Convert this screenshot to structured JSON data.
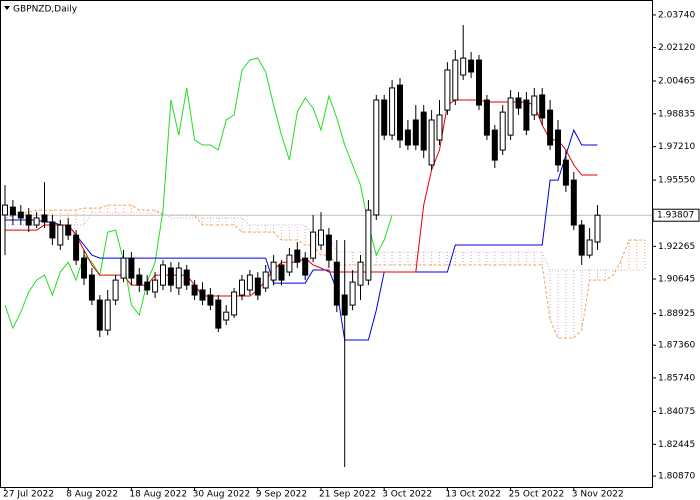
{
  "chart_data": {
    "type": "candlestick",
    "title": "GBPNZD,Daily",
    "categories": [
      "27 Jul 2022",
      null,
      null,
      null,
      null,
      null,
      null,
      null,
      "8 Aug 2022",
      null,
      null,
      null,
      null,
      null,
      null,
      null,
      "18 Aug 2022",
      null,
      null,
      null,
      null,
      null,
      null,
      null,
      "30 Aug 2022",
      null,
      null,
      null,
      null,
      null,
      null,
      null,
      "9 Sep 2022",
      null,
      null,
      null,
      null,
      null,
      null,
      null,
      "21 Sep 2022",
      null,
      null,
      null,
      null,
      null,
      null,
      null,
      "3 Oct 2022",
      null,
      null,
      null,
      null,
      null,
      null,
      null,
      "13 Oct 2022",
      null,
      null,
      null,
      null,
      null,
      null,
      null,
      "25 Oct 2022",
      null,
      null,
      null,
      null,
      null,
      null,
      null,
      "3 Nov 2022",
      null,
      null,
      null
    ],
    "open": [
      1.9382,
      1.9421,
      1.9396,
      1.9382,
      1.9332,
      1.9382,
      1.9347,
      1.9233,
      1.9332,
      1.9282,
      1.9168,
      1.9084,
      1.896,
      1.8811,
      1.896,
      1.9069,
      1.9168,
      1.9084,
      1.9049,
      1.9,
      1.9034,
      1.9119,
      1.902,
      1.9109,
      1.9034,
      1.901,
      1.8985,
      1.896,
      1.8861,
      1.8886,
      1.8985,
      1.901,
      1.9069,
      1.902,
      1.9059,
      1.9134,
      1.9099,
      1.9208,
      1.9168,
      1.9168,
      1.9233,
      1.9282,
      1.9148,
      1.8985,
      1.8935,
      1.9034,
      1.9059,
      1.9382,
      1.9952,
      1.9778,
      2.0026,
      1.9803,
      1.9853,
      1.9892,
      1.963,
      1.9754,
      1.9902,
      1.9952,
      2.0076,
      2.015,
      2.015,
      1.9952,
      1.9803,
      1.9704,
      1.9778,
      1.9962,
      1.9952,
      1.9878,
      1.9977,
      1.9902,
      1.9803,
      1.9654,
      1.9555,
      1.9332,
      1.9183,
      1.9248
    ],
    "high": [
      1.953,
      1.9456,
      1.9431,
      1.9416,
      1.9396,
      1.9545,
      1.9382,
      1.9357,
      1.9367,
      1.9307,
      1.9208,
      1.9119,
      1.8985,
      1.901,
      1.9084,
      1.9208,
      1.9198,
      1.9119,
      1.9084,
      1.9099,
      1.9158,
      1.9148,
      1.9148,
      1.9134,
      1.9059,
      1.9049,
      1.902,
      1.8985,
      1.8935,
      1.902,
      1.9084,
      1.9109,
      1.9099,
      1.9134,
      1.9183,
      1.9158,
      1.9218,
      1.9248,
      1.9198,
      1.9382,
      1.9396,
      1.9317,
      1.9258,
      1.9258,
      1.9109,
      1.9183,
      1.9456,
      1.9977,
      1.9977,
      2.0051,
      2.0061,
      1.9853,
      1.9927,
      1.9927,
      1.9902,
      1.9952,
      2.014,
      2.02,
      2.0324,
      2.019,
      2.0175,
      1.9977,
      1.9828,
      1.9927,
      2.0002,
      1.9992,
      1.9992,
      2.0012,
      2.0012,
      1.9952,
      1.9853,
      1.9704,
      1.9595,
      1.9357,
      1.9317,
      1.9431
    ],
    "low": [
      1.9183,
      1.9332,
      1.9332,
      1.9297,
      1.9317,
      1.9317,
      1.9233,
      1.9208,
      1.9258,
      1.9134,
      1.9034,
      1.8935,
      1.8776,
      1.8786,
      1.8935,
      1.9049,
      1.9034,
      1.9,
      1.8985,
      1.897,
      1.901,
      1.9,
      1.8985,
      1.901,
      1.896,
      1.8935,
      1.891,
      1.8801,
      1.8836,
      1.8871,
      1.896,
      1.8985,
      1.896,
      1.9,
      1.9034,
      1.9034,
      1.9079,
      1.9119,
      1.9059,
      1.9148,
      1.9208,
      1.9119,
      1.89,
      1.8132,
      1.891,
      1.896,
      1.9034,
      1.9357,
      1.9754,
      1.9754,
      1.9714,
      1.9704,
      1.9704,
      1.9664,
      1.9605,
      1.9729,
      1.9878,
      1.9927,
      2.0051,
      2.0061,
      1.9902,
      1.9754,
      1.9615,
      1.9679,
      1.9754,
      1.9878,
      1.9778,
      1.9853,
      1.9828,
      1.9704,
      1.9595,
      1.9496,
      1.9307,
      1.9134,
      1.9168,
      1.9208
    ],
    "close": [
      1.9431,
      1.9382,
      1.9367,
      1.9332,
      1.9367,
      1.9347,
      1.9268,
      1.9332,
      1.9282,
      1.9158,
      1.9069,
      1.896,
      1.8811,
      1.896,
      1.9059,
      1.9168,
      1.9069,
      1.9034,
      1.901,
      1.9059,
      1.9134,
      1.9034,
      1.9119,
      1.9034,
      1.8985,
      1.896,
      1.8935,
      1.8821,
      1.89,
      1.9,
      1.9059,
      1.9084,
      1.8985,
      1.9099,
      1.9148,
      1.9059,
      1.9183,
      1.9148,
      1.9084,
      1.9297,
      1.9307,
      1.9158,
      1.8935,
      1.8886,
      1.9049,
      1.9148,
      1.9406,
      1.9952,
      1.9778,
      2.0012,
      1.9754,
      1.9729,
      1.9729,
      1.9704,
      1.9853,
      1.9878,
      2.0101,
      2.015,
      2.016,
      2.0091,
      1.9927,
      1.9778,
      1.9654,
      1.9892,
      1.9962,
      1.9912,
      1.9803,
      1.9972,
      1.9863,
      1.9729,
      1.963,
      1.953,
      1.9332,
      1.9183,
      1.9258,
      1.93807
    ],
    "bull_color": "#ffffff",
    "bear_color": "#000000",
    "tenkan": {
      "color": "#e00000",
      "values": [
        1.9307,
        1.9307,
        1.9307,
        1.9307,
        1.9307,
        1.9332,
        1.9332,
        1.9332,
        1.9332,
        1.9282,
        1.9208,
        1.9134,
        1.9084,
        1.9084,
        1.9084,
        1.9084,
        1.9034,
        1.9034,
        1.9034,
        1.9084,
        1.9084,
        1.9084,
        1.9084,
        1.9084,
        1.9034,
        1.898,
        1.898,
        1.898,
        1.898,
        1.898,
        1.898,
        1.898,
        1.901,
        1.9059,
        1.9109,
        1.9148,
        1.9148,
        1.9148,
        1.9168,
        1.9134,
        1.9119,
        1.9099,
        1.9099,
        1.9099,
        1.9099,
        1.9099,
        1.9099,
        1.9099,
        1.9099,
        1.9099,
        1.9099,
        1.9099,
        1.9099,
        1.9431,
        1.9605,
        1.9704,
        1.9927,
        1.9952,
        1.9952,
        1.9952,
        1.9952,
        1.9942,
        1.9942,
        1.9942,
        1.9942,
        1.9942,
        1.9942,
        1.9927,
        1.9828,
        1.9754,
        1.9754,
        1.9704,
        1.963,
        1.958,
        1.958,
        1.958
      ]
    },
    "kijun": {
      "color": "#0000e0",
      "values": [
        1.9357,
        1.9357,
        1.9357,
        1.9357,
        1.9357,
        1.9347,
        1.9347,
        1.9332,
        1.9332,
        1.9282,
        1.9233,
        1.9183,
        1.9168,
        1.9168,
        1.9168,
        1.9168,
        1.9168,
        1.9168,
        1.9168,
        1.9168,
        1.9168,
        1.9168,
        1.9168,
        1.9168,
        1.9168,
        1.9168,
        1.9168,
        1.9168,
        1.9168,
        1.9168,
        1.9168,
        1.9168,
        1.9168,
        1.9168,
        1.9044,
        1.9044,
        1.9044,
        1.9044,
        1.9044,
        1.9109,
        1.9109,
        1.9109,
        1.901,
        1.8762,
        1.8762,
        1.8762,
        1.8762,
        1.891,
        1.9099,
        1.9099,
        1.9099,
        1.9099,
        1.9099,
        1.9099,
        1.9099,
        1.9099,
        1.9099,
        1.9233,
        1.9233,
        1.9233,
        1.9233,
        1.9233,
        1.9233,
        1.9233,
        1.9233,
        1.9233,
        1.9233,
        1.9233,
        1.9233,
        1.9555,
        1.9555,
        1.9679,
        1.9803,
        1.9729,
        1.9729,
        1.9729
      ]
    },
    "chikou": {
      "color": "#22dd22",
      "values": [
        1.8935,
        1.8821,
        1.89,
        1.9,
        1.9059,
        1.9084,
        1.8985,
        1.9099,
        1.9148,
        1.9059,
        1.9183,
        1.9148,
        1.9084,
        1.9297,
        1.9307,
        1.9158,
        1.8935,
        1.8886,
        1.9049,
        1.9148,
        1.9406,
        1.9952,
        1.9778,
        2.0012,
        1.9754,
        1.9729,
        1.9729,
        1.9704,
        1.9853,
        1.9878,
        2.0101,
        2.015,
        2.016,
        2.0091,
        1.9927,
        1.9778,
        1.9654,
        1.9892,
        1.9962,
        1.9912,
        1.9803,
        1.9972,
        1.9863,
        1.9729,
        1.963,
        1.953,
        1.9332,
        1.9183,
        1.9258,
        1.93807
      ]
    },
    "span_a": {
      "color": "#f4a460",
      "values": [
        1.9367,
        1.9377,
        1.9387,
        1.9396,
        1.9406,
        1.9406,
        1.9406,
        1.9406,
        1.9406,
        1.9406,
        1.9416,
        1.9416,
        1.9416,
        1.9431,
        1.9431,
        1.9431,
        1.9431,
        1.9406,
        1.9406,
        1.9406,
        1.9382,
        1.9382,
        1.9382,
        1.9382,
        1.9382,
        1.9332,
        1.9332,
        1.9332,
        1.9332,
        1.9332,
        1.9297,
        1.9297,
        1.9297,
        1.9297,
        1.9297,
        1.9258,
        1.9258,
        1.9258,
        1.9233,
        1.9233,
        1.9183,
        1.9183,
        1.9134,
        1.9134,
        1.9134,
        1.9134,
        1.9134,
        1.9134,
        1.9134,
        1.9134,
        1.9134,
        1.9134,
        1.9134,
        1.9134,
        1.9134,
        1.9134,
        1.9134,
        1.9134,
        1.9134,
        1.9134,
        1.9134,
        1.9134,
        1.9134,
        1.9134,
        1.9134,
        1.9134,
        1.9134,
        1.9134,
        1.9134,
        1.8861,
        1.8772,
        1.8772,
        1.8772,
        1.8811,
        1.9059,
        1.9059,
        1.9059,
        1.9084,
        1.9158,
        1.9258,
        1.9258,
        1.9258
      ]
    },
    "span_b": {
      "color": "#c8a8c8",
      "values": [
        1.9332,
        1.9332,
        1.9332,
        1.9332,
        1.9332,
        1.9332,
        1.9332,
        1.9332,
        1.9332,
        1.9332,
        1.9332,
        1.9392,
        1.9392,
        1.9392,
        1.9392,
        1.9392,
        1.9392,
        1.9392,
        1.9392,
        1.9392,
        1.9392,
        1.9367,
        1.9367,
        1.9367,
        1.9367,
        1.9367,
        1.9367,
        1.9367,
        1.9367,
        1.9367,
        1.9367,
        1.9332,
        1.9332,
        1.9332,
        1.9332,
        1.9332,
        1.9332,
        1.9332,
        1.9332,
        1.9282,
        1.9282,
        1.9282,
        1.9198,
        1.9198,
        1.9198,
        1.9198,
        1.9198,
        1.9198,
        1.9198,
        1.9198,
        1.9198,
        1.9198,
        1.9198,
        1.9198,
        1.9198,
        1.9198,
        1.9198,
        1.9198,
        1.9198,
        1.9198,
        1.9198,
        1.9198,
        1.9198,
        1.9198,
        1.9198,
        1.9198,
        1.9198,
        1.9198,
        1.9198,
        1.9109,
        1.9109,
        1.9109,
        1.9109,
        1.9109,
        1.9109,
        1.9109,
        1.9109,
        1.9109,
        1.9109,
        1.9109,
        1.9109,
        1.9109
      ]
    },
    "last_price": 1.93807,
    "ylim": [
      1.8033,
      2.0448
    ],
    "yticks": [
      {
        "value": 2.0374,
        "label": "2.03740"
      },
      {
        "value": 2.0212,
        "label": "2.02120"
      },
      2.00465,
      1.98835,
      {
        "value": 1.9721,
        "label": "1.97210"
      },
      {
        "value": 1.9555,
        "label": "1.95550"
      },
      1.92265,
      1.90645,
      1.88925,
      {
        "value": 1.8736,
        "label": "1.87360"
      },
      {
        "value": 1.8574,
        "label": "1.85740"
      },
      1.84075,
      1.82445,
      {
        "value": 1.8087,
        "label": "1.80870"
      }
    ]
  }
}
